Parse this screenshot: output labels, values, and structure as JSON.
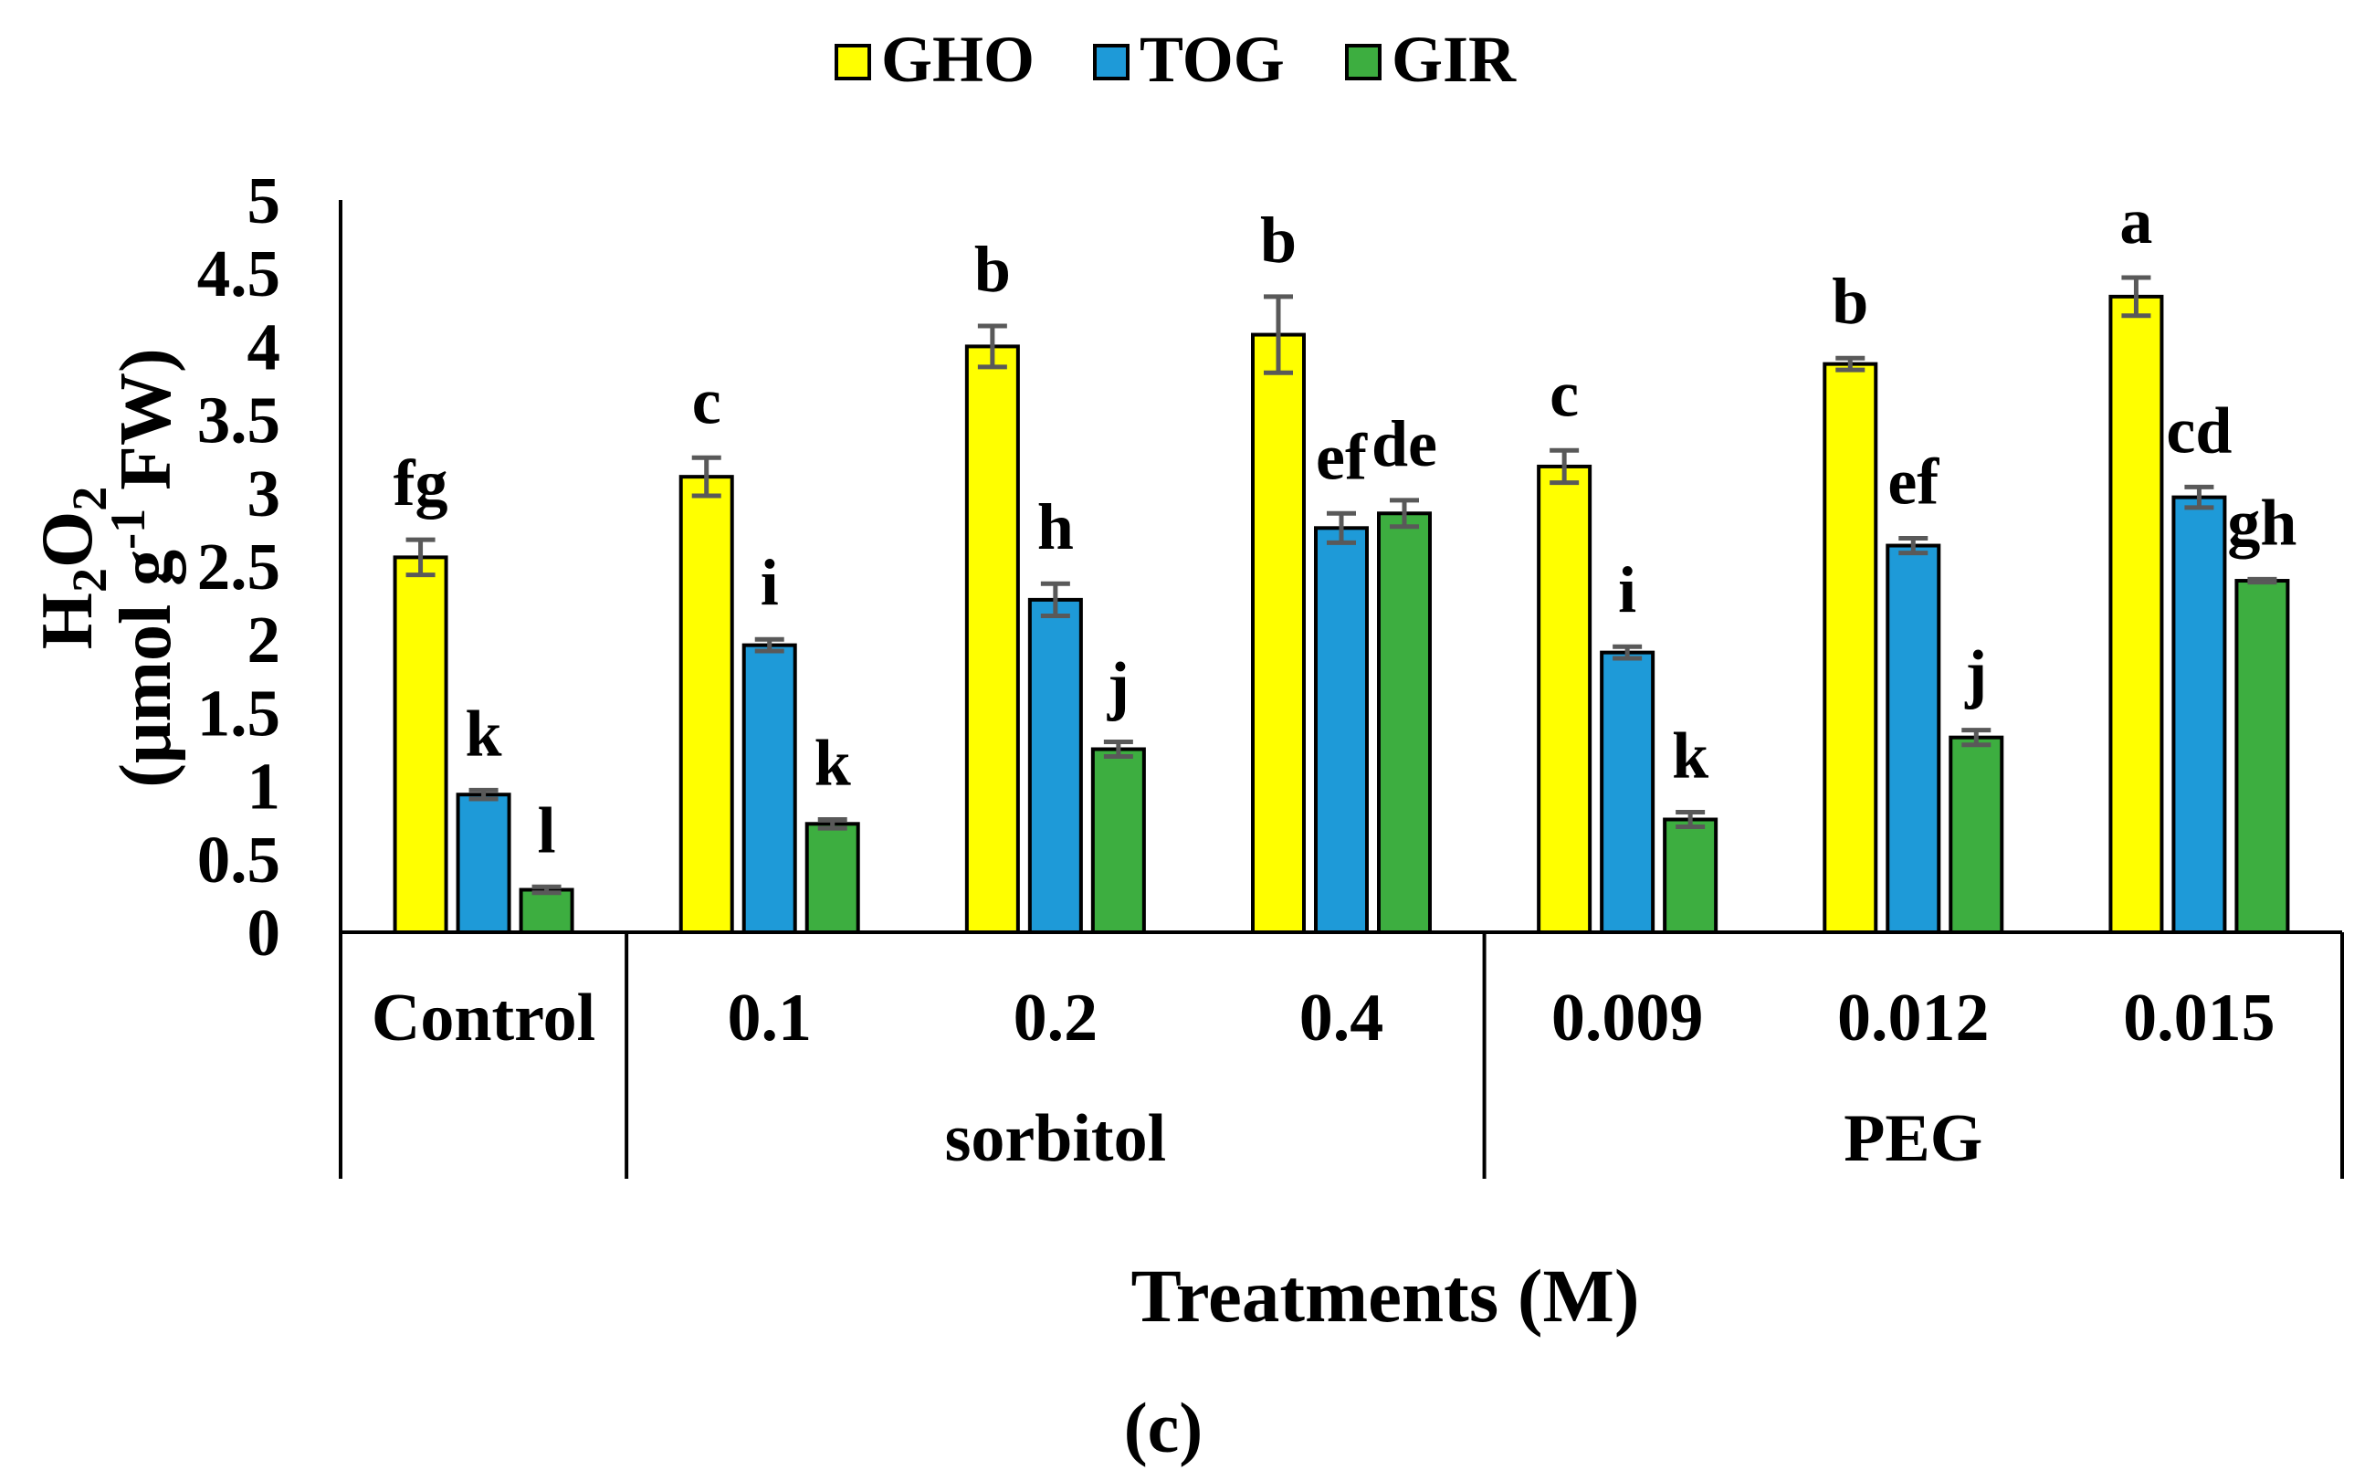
{
  "chart_data": {
    "type": "bar",
    "title": "",
    "caption": "(c)",
    "xlabel": "Treatments (M)",
    "ylabel": {
      "formula_h": "H",
      "formula_sub1": "2",
      "formula_o": "O",
      "formula_sub2": "2",
      "unit_pre": "(μmol g",
      "unit_sup": "-1",
      "unit_post": " FW)"
    },
    "ylim": [
      0,
      5
    ],
    "yticks": [
      0,
      0.5,
      1,
      1.5,
      2,
      2.5,
      3,
      3.5,
      4,
      4.5,
      5
    ],
    "ytick_labels": [
      "0",
      "0.5",
      "1",
      "1.5",
      "2",
      "2.5",
      "3",
      "3.5",
      "4",
      "4.5",
      "5"
    ],
    "grid": false,
    "legend": "top-center",
    "categories": [
      "Control",
      "0.1",
      "0.2",
      "0.4",
      "0.009",
      "0.012",
      "0.015"
    ],
    "groups": [
      {
        "label": "sorbitol",
        "start": 1,
        "end": 3
      },
      {
        "label": "PEG",
        "start": 4,
        "end": 6
      }
    ],
    "series": [
      {
        "name": "GHO",
        "color": "#FFFF00",
        "values": [
          2.56,
          3.11,
          4.0,
          4.08,
          3.18,
          3.88,
          4.34
        ],
        "errors": [
          0.12,
          0.13,
          0.14,
          0.26,
          0.11,
          0.04,
          0.13
        ],
        "letters": [
          "fg",
          "c",
          "b",
          "b",
          "c",
          "b",
          "a"
        ]
      },
      {
        "name": "TOG",
        "color": "#1E9AD8",
        "values": [
          0.94,
          1.96,
          2.27,
          2.76,
          1.91,
          2.64,
          2.97
        ],
        "errors": [
          0.03,
          0.04,
          0.11,
          0.1,
          0.04,
          0.05,
          0.07
        ],
        "letters": [
          "k",
          "i",
          "h",
          "ef",
          "i",
          "ef",
          "cd"
        ]
      },
      {
        "name": "GIR",
        "color": "#3DAE40",
        "values": [
          0.29,
          0.74,
          1.25,
          2.86,
          0.77,
          1.33,
          2.4
        ],
        "errors": [
          0.02,
          0.03,
          0.05,
          0.09,
          0.05,
          0.05,
          0.01
        ],
        "letters": [
          "l",
          "k",
          "j",
          "de",
          "k",
          "j",
          "gh"
        ]
      }
    ],
    "error_bar_color": "#595959",
    "outline_color": "#000000"
  }
}
